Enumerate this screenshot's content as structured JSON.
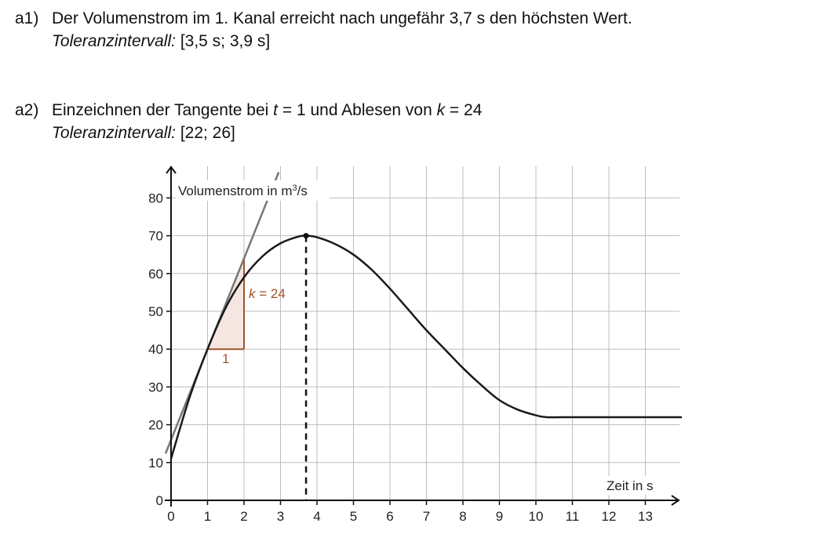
{
  "a1": {
    "label": "a1)",
    "text": "Der Volumenstrom im 1. Kanal erreicht nach ungefähr 3,7 s den höchsten Wert.",
    "tol_label": "Toleranzintervall:",
    "tol_value": " [3,5 s; 3,9 s]"
  },
  "a2": {
    "label": "a2)",
    "text_1": "Einzeichnen der Tangente bei ",
    "var_t": "t",
    "text_2": " = 1 und Ablesen von ",
    "var_k": "k",
    "text_3": " = 24",
    "tol_label": "Toleranzintervall:",
    "tol_value": " [22; 26]"
  },
  "chart_data": {
    "type": "line",
    "ylabel_main": "Volumenstrom in m",
    "ylabel_sup": "3",
    "ylabel_tail": "/s",
    "xlabel": "Zeit in s",
    "xlim": [
      0,
      14
    ],
    "ylim": [
      0,
      88
    ],
    "x_ticks": [
      0,
      1,
      2,
      3,
      4,
      5,
      6,
      7,
      8,
      9,
      10,
      11,
      12,
      13
    ],
    "y_ticks": [
      0,
      10,
      20,
      30,
      40,
      50,
      60,
      70,
      80
    ],
    "grid": true,
    "series": [
      {
        "x": [
          0,
          0.5,
          1,
          1.5,
          2,
          2.5,
          3,
          3.5,
          3.7,
          4,
          4.5,
          5,
          5.5,
          6,
          6.5,
          7,
          7.5,
          8,
          8.5,
          9,
          9.5,
          10,
          10.3,
          11,
          12,
          13,
          14
        ],
        "y": [
          11,
          27,
          40,
          51,
          59,
          64.5,
          68,
          69.8,
          70,
          69.6,
          67.8,
          65,
          61,
          56,
          50.5,
          45,
          40,
          35,
          30.5,
          26.5,
          24,
          22.5,
          22,
          22,
          22,
          22,
          22
        ]
      }
    ],
    "maximum_point": {
      "x": 3.7,
      "y": 70
    },
    "tangent": {
      "x0": 1,
      "y0": 40,
      "slope": 24
    },
    "slope_triangle": {
      "run_label": "1",
      "rise_label_var": "k",
      "rise_label_rest": " = 24",
      "color": "#a0522d",
      "fill": "#f5e6e2"
    }
  }
}
